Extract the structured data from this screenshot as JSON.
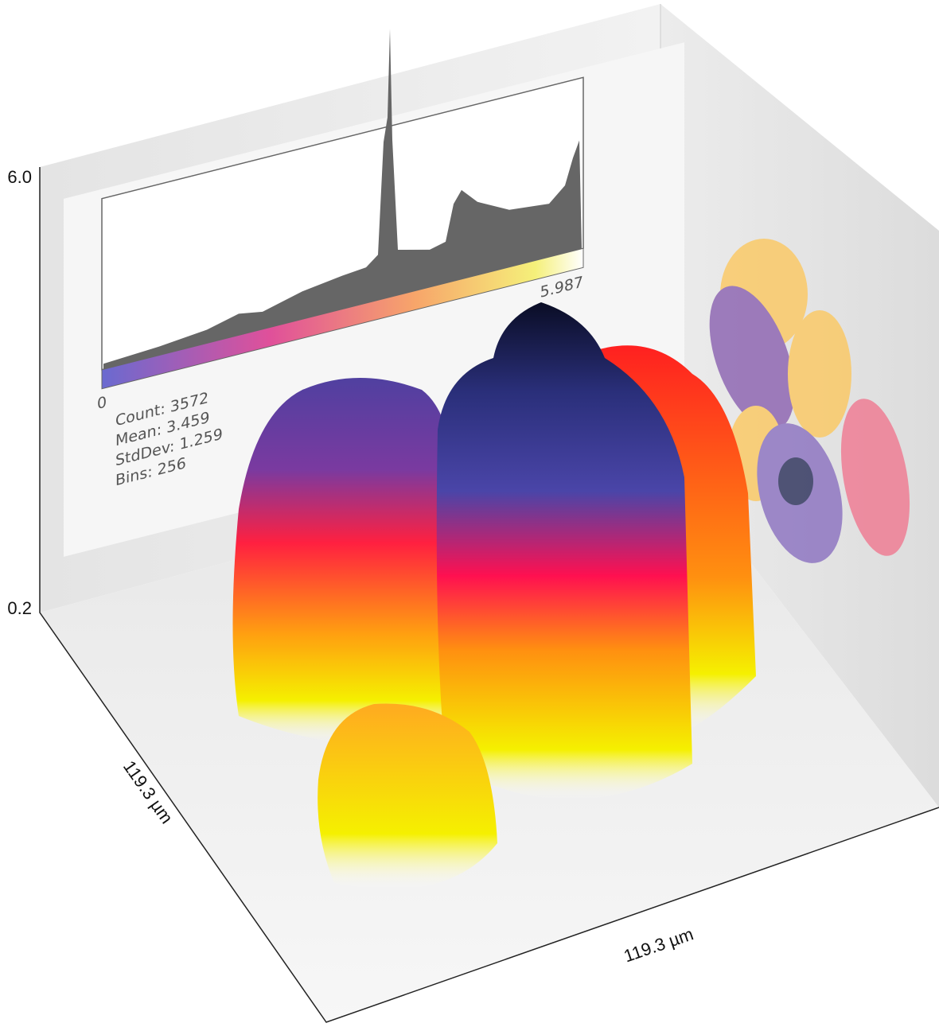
{
  "axes": {
    "z_max": "6.0",
    "z_min": "0.2",
    "x_size": "119.3 µm",
    "y_size": "119.3 µm"
  },
  "histogram": {
    "min_label": "0",
    "max_label": "5.987",
    "stats": [
      "Count: 3572",
      "Mean: 3.459",
      "StdDev: 1.259",
      "Bins: 256"
    ]
  }
}
